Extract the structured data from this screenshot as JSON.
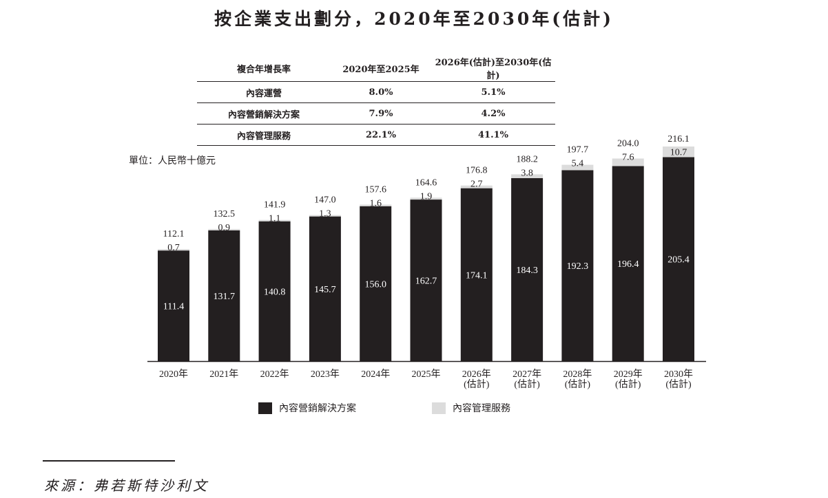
{
  "title": "按企業支出劃分，2020年至2030年(估計)",
  "cagr_table": {
    "headers": [
      "複合年增長率",
      "2020年至2025年",
      "2026年(估計)至2030年(估計)"
    ],
    "rows": [
      [
        "內容運營",
        "8.0%",
        "5.1%"
      ],
      [
        "內容營銷解決方案",
        "7.9%",
        "4.2%"
      ],
      [
        "內容管理服務",
        "22.1%",
        "41.1%"
      ]
    ]
  },
  "unit_label": "單位：人民幣十億元",
  "source": "來源：弗若斯特沙利文",
  "colors": {
    "solutions": "#231f20",
    "management": "#dcdcdc",
    "text": "#231f20"
  },
  "chart_data": {
    "type": "bar",
    "stacked": true,
    "categories": [
      [
        "2020年"
      ],
      [
        "2021年"
      ],
      [
        "2022年"
      ],
      [
        "2023年"
      ],
      [
        "2024年"
      ],
      [
        "2025年"
      ],
      [
        "2026年",
        "(估計)"
      ],
      [
        "2027年",
        "(估計)"
      ],
      [
        "2028年",
        "(估計)"
      ],
      [
        "2029年",
        "(估計)"
      ],
      [
        "2030年",
        "(估計)"
      ]
    ],
    "series": [
      {
        "name": "內容營銷解決方案",
        "values": [
          111.4,
          131.7,
          140.8,
          145.7,
          156.0,
          162.7,
          174.1,
          184.3,
          192.3,
          196.4,
          205.4
        ]
      },
      {
        "name": "內容管理服務",
        "values": [
          0.7,
          0.9,
          1.1,
          1.3,
          1.6,
          1.9,
          2.7,
          3.8,
          5.4,
          7.6,
          10.7
        ]
      }
    ],
    "totals": [
      112.1,
      132.5,
      141.9,
      147.0,
      157.6,
      164.6,
      176.8,
      188.2,
      197.7,
      204.0,
      216.1
    ],
    "ylim": [
      0,
      216.1
    ],
    "legend_position": "bottom",
    "grid": false
  }
}
